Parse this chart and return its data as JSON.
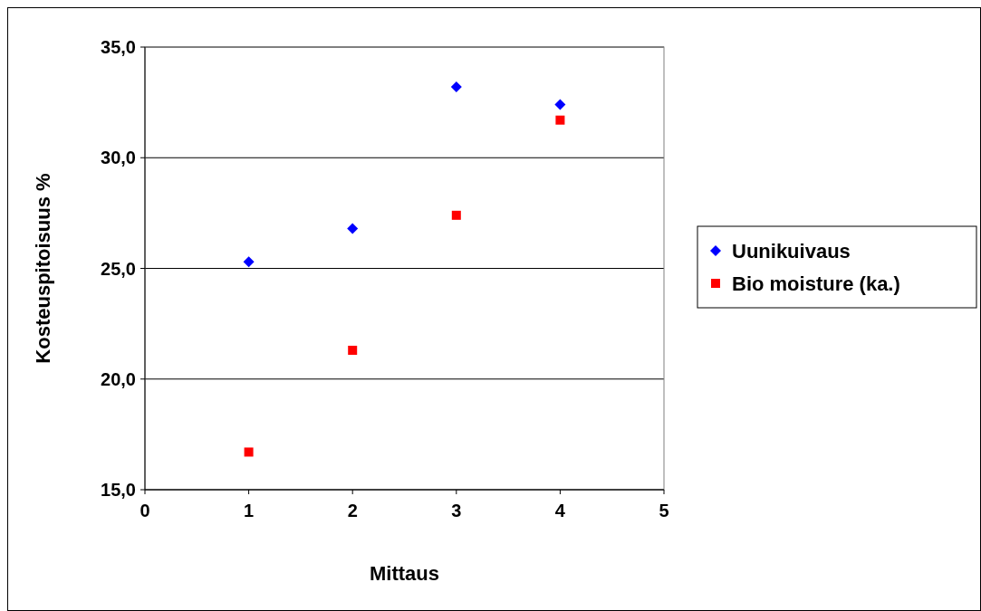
{
  "chart_data": {
    "type": "scatter",
    "xlabel": "Mittaus",
    "ylabel": "Kosteuspitoisuus %",
    "x": [
      1,
      2,
      3,
      4
    ],
    "series": [
      {
        "name": "Uunikuivaus",
        "color": "#0000ff",
        "marker": "diamond",
        "values": [
          25.3,
          26.8,
          33.2,
          32.4
        ]
      },
      {
        "name": "Bio moisture (ka.)",
        "color": "#ff0000",
        "marker": "square",
        "values": [
          16.7,
          21.3,
          27.4,
          31.7
        ]
      }
    ],
    "xlim": [
      0,
      5
    ],
    "xticks": [
      0,
      1,
      2,
      3,
      4,
      5
    ],
    "ylim": [
      15,
      35
    ],
    "yticks": [
      {
        "value": 15,
        "label": "15,0"
      },
      {
        "value": 20,
        "label": "20,0"
      },
      {
        "value": 25,
        "label": "25,0"
      },
      {
        "value": 30,
        "label": "30,0"
      },
      {
        "value": 35,
        "label": "35,0"
      }
    ],
    "grid": "y",
    "legend": "right"
  }
}
